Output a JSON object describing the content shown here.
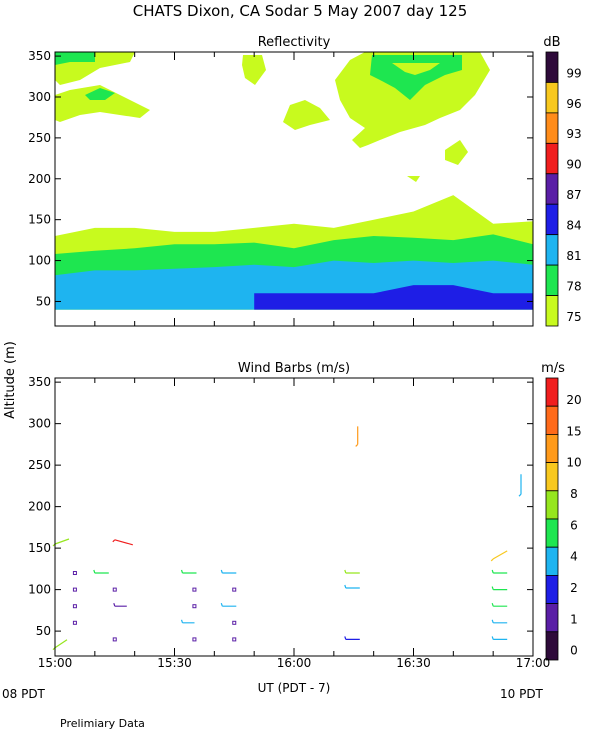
{
  "title": "CHATS Dixon, CA  Sodar    5 May 2007   day 125",
  "footer": "Prelimiary Data",
  "xaxis": {
    "label": "UT  (PDT - 7)",
    "ticks": [
      "15:00",
      "15:30",
      "16:00",
      "16:30",
      "17:00"
    ],
    "left_note": "08 PDT",
    "right_note": "10 PDT"
  },
  "ylabel": "Altitude  (m)",
  "chart_data": [
    {
      "type": "heatmap",
      "title": "Reflectivity",
      "ylim": [
        20,
        355
      ],
      "yticks": [
        50,
        100,
        150,
        200,
        250,
        300,
        350
      ],
      "xlim_minutes": [
        0,
        120
      ],
      "colorbar": {
        "unit": "dB",
        "labels": [
          "99",
          "96",
          "93",
          "90",
          "87",
          "84",
          "81",
          "78",
          "75"
        ],
        "colors": [
          "#2e0a3a",
          "#f8c81e",
          "#ff8c1a",
          "#f01e1e",
          "#5a1ea6",
          "#1e1ee6",
          "#1eb4f0",
          "#1ee650",
          "#c8fa1e"
        ]
      },
      "contour_bands": [
        {
          "level": "75 dB",
          "color": "#c8fa1e",
          "x_minutes": [
            0,
            10,
            20,
            30,
            40,
            50,
            60,
            70,
            80,
            90,
            100,
            110,
            120
          ],
          "top_m": [
            130,
            140,
            140,
            135,
            135,
            140,
            145,
            140,
            150,
            160,
            180,
            145,
            148
          ],
          "bottom_m": [
            40,
            40,
            40,
            40,
            40,
            40,
            40,
            40,
            40,
            40,
            40,
            40,
            40
          ]
        },
        {
          "level": "78 dB",
          "color": "#1ee650",
          "x_minutes": [
            0,
            10,
            20,
            30,
            40,
            50,
            60,
            70,
            80,
            90,
            100,
            110,
            120
          ],
          "top_m": [
            108,
            112,
            115,
            120,
            120,
            122,
            115,
            125,
            130,
            128,
            125,
            132,
            120
          ],
          "bottom_m": [
            40,
            40,
            40,
            40,
            40,
            40,
            40,
            40,
            40,
            40,
            40,
            40,
            40
          ]
        },
        {
          "level": "81 dB",
          "color": "#1eb4f0",
          "x_minutes": [
            0,
            10,
            20,
            30,
            40,
            50,
            60,
            70,
            80,
            90,
            100,
            110,
            120
          ],
          "top_m": [
            82,
            88,
            88,
            90,
            92,
            95,
            92,
            100,
            97,
            100,
            97,
            100,
            95
          ],
          "bottom_m": [
            40,
            40,
            40,
            40,
            40,
            40,
            40,
            40,
            40,
            40,
            40,
            40,
            40
          ]
        },
        {
          "level": "84 dB",
          "color": "#1e1ee6",
          "x_minutes": [
            50,
            80,
            90,
            100,
            110,
            120
          ],
          "top_m": [
            60,
            60,
            70,
            70,
            60,
            60
          ],
          "bottom_m": [
            40,
            40,
            40,
            40,
            40,
            40
          ]
        }
      ],
      "upper_patches_dB": [
        75,
        78
      ]
    },
    {
      "type": "scatter",
      "title": "Wind Barbs (m/s)",
      "ylim": [
        20,
        355
      ],
      "yticks": [
        50,
        100,
        150,
        200,
        250,
        300,
        350
      ],
      "colorbar": {
        "unit": "m/s",
        "labels": [
          "20",
          "15",
          "10",
          "8",
          "6",
          "4",
          "2",
          "1",
          "0"
        ],
        "colors": [
          "#f01e1e",
          "#ff6a1a",
          "#ff9a1a",
          "#f8c81e",
          "#96e61e",
          "#1ee650",
          "#1eb4f0",
          "#1e1ee6",
          "#5a1ea6",
          "#2e0a3a"
        ]
      },
      "barbs": [
        {
          "t": 0,
          "alt": 155,
          "color": "#96e61e",
          "dx": 14,
          "dy": -5
        },
        {
          "t": 0,
          "alt": 30,
          "color": "#96e61e",
          "dx": 12,
          "dy": -8
        },
        {
          "t": 15,
          "alt": 160,
          "color": "#f01e1e",
          "dx": 18,
          "dy": 5
        },
        {
          "t": 10,
          "alt": 120,
          "color": "#1ee650",
          "dx": 14,
          "dy": 0
        },
        {
          "t": 15,
          "alt": 80,
          "color": "#5a1ea6",
          "dx": 12,
          "dy": 0
        },
        {
          "t": 32,
          "alt": 120,
          "color": "#1ee650",
          "dx": 14,
          "dy": 0
        },
        {
          "t": 32,
          "alt": 60,
          "color": "#1eb4f0",
          "dx": 12,
          "dy": 0
        },
        {
          "t": 42,
          "alt": 120,
          "color": "#1eb4f0",
          "dx": 14,
          "dy": 0
        },
        {
          "t": 42,
          "alt": 80,
          "color": "#1eb4f0",
          "dx": 14,
          "dy": 0
        },
        {
          "t": 76,
          "alt": 275,
          "color": "#ff9a1a",
          "dx": 0,
          "dy": -18
        },
        {
          "t": 73,
          "alt": 120,
          "color": "#96e61e",
          "dx": 14,
          "dy": 0
        },
        {
          "t": 73,
          "alt": 102,
          "color": "#1eb4f0",
          "dx": 14,
          "dy": 0
        },
        {
          "t": 73,
          "alt": 40,
          "color": "#1e1ee6",
          "dx": 14,
          "dy": 0
        },
        {
          "t": 117,
          "alt": 215,
          "color": "#1eb4f0",
          "dx": 0,
          "dy": -20
        },
        {
          "t": 110,
          "alt": 137,
          "color": "#f8c81e",
          "dx": 14,
          "dy": -8
        },
        {
          "t": 110,
          "alt": 120,
          "color": "#1ee650",
          "dx": 14,
          "dy": 0
        },
        {
          "t": 110,
          "alt": 100,
          "color": "#1ee650",
          "dx": 14,
          "dy": 0
        },
        {
          "t": 110,
          "alt": 80,
          "color": "#1ee650",
          "dx": 14,
          "dy": 0
        },
        {
          "t": 110,
          "alt": 60,
          "color": "#1eb4f0",
          "dx": 14,
          "dy": 0
        },
        {
          "t": 110,
          "alt": 40,
          "color": "#1eb4f0",
          "dx": 14,
          "dy": 0
        }
      ],
      "calm_points": [
        {
          "t": 5,
          "alt": 120
        },
        {
          "t": 5,
          "alt": 100
        },
        {
          "t": 5,
          "alt": 80
        },
        {
          "t": 5,
          "alt": 60
        },
        {
          "t": 15,
          "alt": 100
        },
        {
          "t": 15,
          "alt": 40
        },
        {
          "t": 35,
          "alt": 100
        },
        {
          "t": 35,
          "alt": 80
        },
        {
          "t": 35,
          "alt": 40
        },
        {
          "t": 45,
          "alt": 100
        },
        {
          "t": 45,
          "alt": 60
        },
        {
          "t": 45,
          "alt": 40
        }
      ]
    }
  ]
}
